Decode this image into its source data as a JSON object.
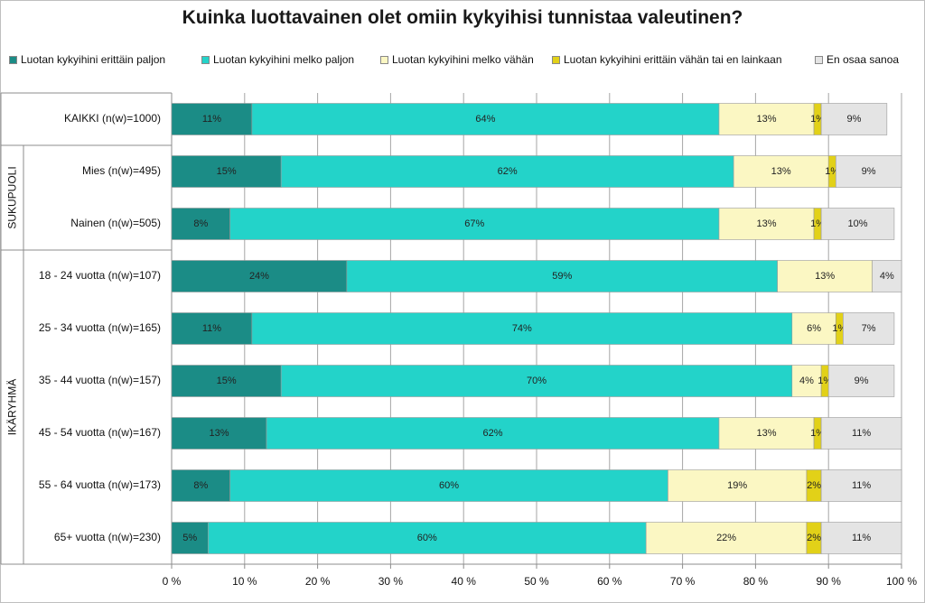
{
  "chart_data": {
    "type": "bar",
    "orientation": "horizontal",
    "stacked": true,
    "title": "Kuinka luottavainen olet omiin kykyihisi tunnistaa valeutinen?",
    "xlim": [
      0,
      100
    ],
    "x_tick_labels": [
      "0 %",
      "10 %",
      "20 %",
      "30 %",
      "40 %",
      "50 %",
      "60 %",
      "70 %",
      "80 %",
      "90 %",
      "100 %"
    ],
    "grid": true,
    "legend_position": "top",
    "categories": [
      "KAIKKI (n(w)=1000)",
      "Mies (n(w)=495)",
      "Nainen (n(w)=505)",
      "18 - 24 vuotta (n(w)=107)",
      "25 - 34 vuotta (n(w)=165)",
      "35 - 44 vuotta (n(w)=157)",
      "45 - 54 vuotta (n(w)=167)",
      "55 - 64 vuotta (n(w)=173)",
      "65+ vuotta (n(w)=230)"
    ],
    "groups": [
      {
        "label": "",
        "rows": [
          0
        ]
      },
      {
        "label": "SUKUPUOLI",
        "rows": [
          1,
          2
        ]
      },
      {
        "label": "IKÄRYHMÄ",
        "rows": [
          3,
          4,
          5,
          6,
          7,
          8
        ]
      }
    ],
    "series": [
      {
        "name": "Luotan kykyihini erittäin paljon",
        "color": "#1b8c86",
        "values": [
          11,
          15,
          8,
          24,
          11,
          15,
          13,
          8,
          5
        ]
      },
      {
        "name": "Luotan kykyihini melko paljon",
        "color": "#23d3c9",
        "values": [
          64,
          62,
          67,
          59,
          74,
          70,
          62,
          60,
          60
        ]
      },
      {
        "name": "Luotan kykyihini melko vähän",
        "color": "#fbf7c3",
        "values": [
          13,
          13,
          13,
          13,
          6,
          4,
          13,
          19,
          22
        ]
      },
      {
        "name": "Luotan kykyihini erittäin vähän tai en lainkaan",
        "color": "#e2d118",
        "values": [
          1,
          1,
          1,
          0,
          1,
          1,
          1,
          2,
          2
        ]
      },
      {
        "name": "En osaa sanoa",
        "color": "#e4e4e4",
        "values": [
          9,
          9,
          10,
          4,
          7,
          9,
          11,
          11,
          11
        ]
      }
    ],
    "data_labels": [
      [
        "11%",
        "64%",
        "13%",
        "1%",
        "9%"
      ],
      [
        "15%",
        "62%",
        "13%",
        "1%",
        "9%"
      ],
      [
        "8%",
        "67%",
        "13%",
        "1%",
        "10%"
      ],
      [
        "24%",
        "59%",
        "13%",
        "",
        "4%"
      ],
      [
        "11%",
        "74%",
        "6%",
        "1%",
        "7%"
      ],
      [
        "15%",
        "70%",
        "4%",
        "1%",
        "9%"
      ],
      [
        "13%",
        "62%",
        "13%",
        "1%",
        "11%"
      ],
      [
        "8%",
        "60%",
        "19%",
        "2%",
        "11%"
      ],
      [
        "5%",
        "60%",
        "22%",
        "2%",
        "11%"
      ]
    ]
  }
}
